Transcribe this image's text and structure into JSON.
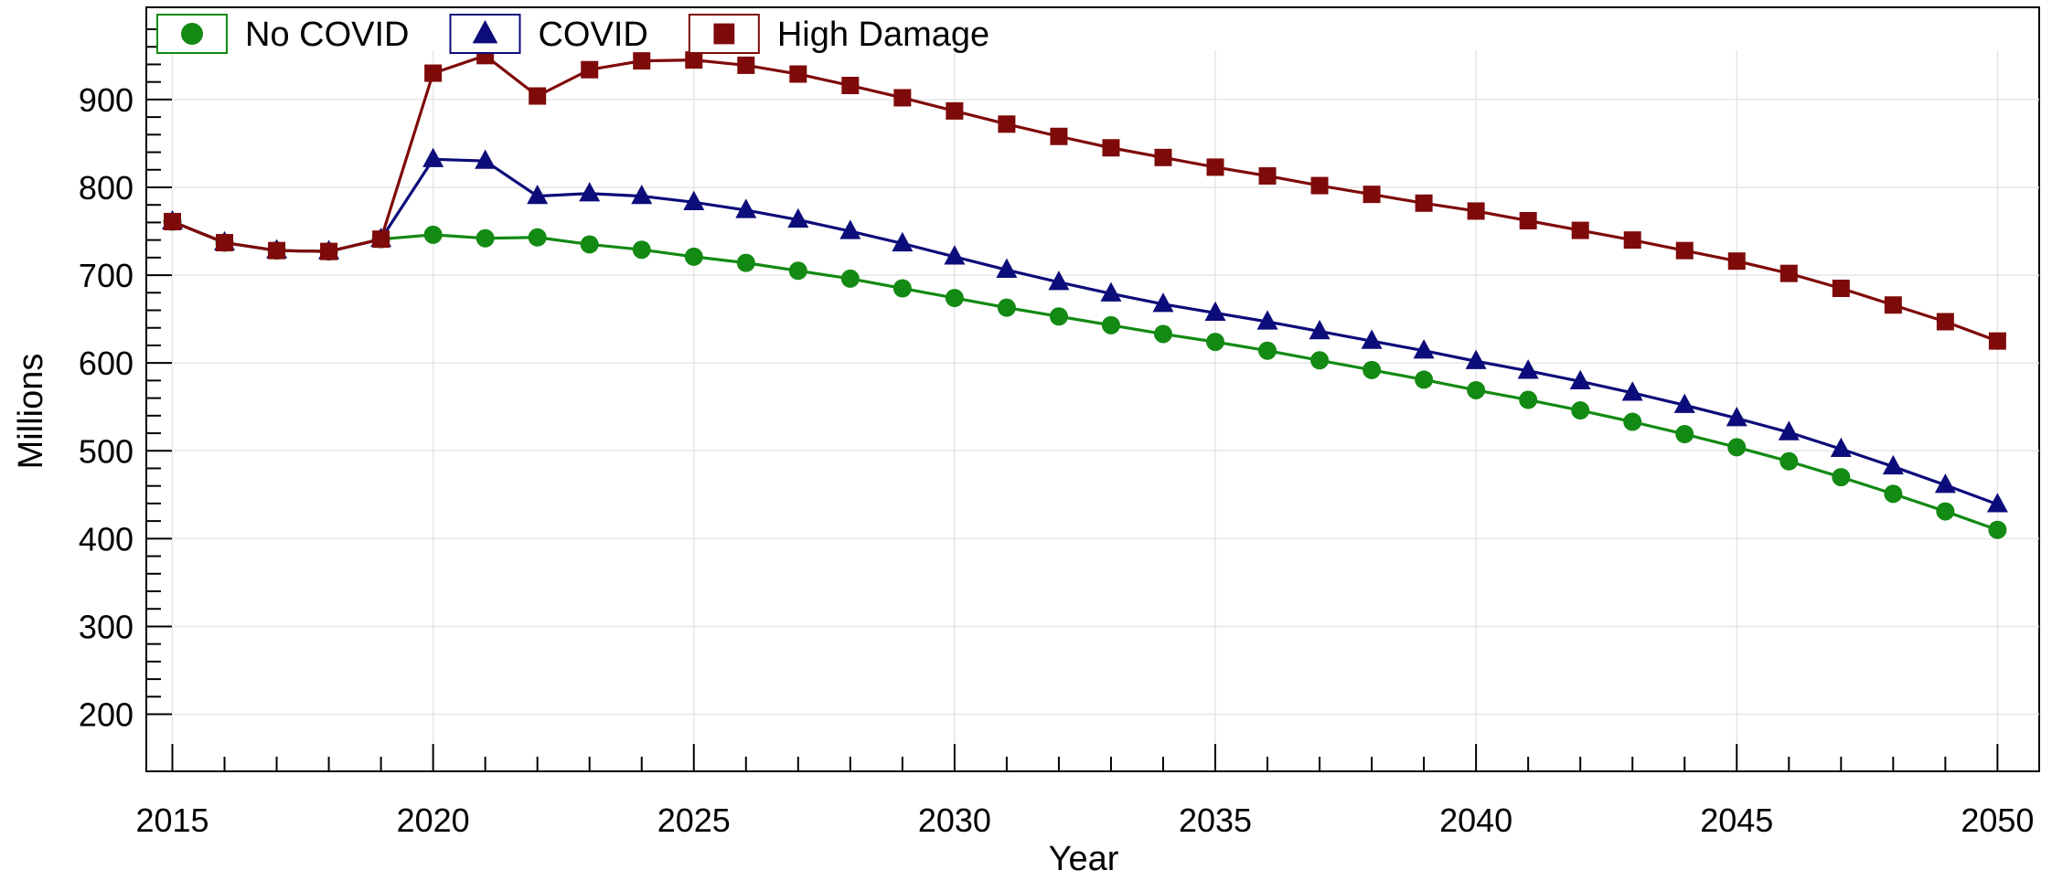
{
  "chart_data": {
    "type": "line",
    "title": "",
    "xlabel": "Year",
    "ylabel": "Millions",
    "xlim": [
      2014.5,
      2050.8
    ],
    "ylim": [
      135,
      1005
    ],
    "x_ticks": [
      2015,
      2020,
      2025,
      2030,
      2035,
      2040,
      2045,
      2050
    ],
    "y_ticks": [
      200,
      300,
      400,
      500,
      600,
      700,
      800,
      900
    ],
    "grid": true,
    "legend_position": "top-left",
    "x": [
      2015,
      2016,
      2017,
      2018,
      2019,
      2020,
      2021,
      2022,
      2023,
      2024,
      2025,
      2026,
      2027,
      2028,
      2029,
      2030,
      2031,
      2032,
      2033,
      2034,
      2035,
      2036,
      2037,
      2038,
      2039,
      2040,
      2041,
      2042,
      2043,
      2044,
      2045,
      2046,
      2047,
      2048,
      2049,
      2050
    ],
    "series": [
      {
        "name": "No COVID",
        "color": "#138a13",
        "marker": "circle",
        "values": [
          761,
          737,
          728,
          727,
          741,
          746,
          742,
          743,
          735,
          729,
          721,
          714,
          705,
          696,
          685,
          674,
          663,
          653,
          643,
          633,
          624,
          614,
          603,
          592,
          581,
          569,
          558,
          546,
          533,
          519,
          504,
          488,
          470,
          451,
          431,
          410
        ]
      },
      {
        "name": "COVID",
        "color": "#0c0c7a",
        "marker": "triangle",
        "values": [
          761,
          737,
          728,
          727,
          741,
          832,
          830,
          790,
          793,
          790,
          783,
          774,
          763,
          750,
          736,
          721,
          706,
          692,
          679,
          667,
          657,
          647,
          636,
          625,
          614,
          602,
          591,
          579,
          566,
          552,
          537,
          521,
          502,
          482,
          461,
          439
        ]
      },
      {
        "name": "High Damage",
        "color": "#7f0a0a",
        "marker": "square",
        "values": [
          761,
          737,
          728,
          727,
          741,
          930,
          950,
          904,
          934,
          944,
          945,
          939,
          929,
          916,
          902,
          887,
          872,
          858,
          845,
          834,
          823,
          813,
          802,
          792,
          782,
          773,
          762,
          751,
          740,
          728,
          716,
          702,
          685,
          666,
          647,
          625
        ]
      }
    ]
  }
}
